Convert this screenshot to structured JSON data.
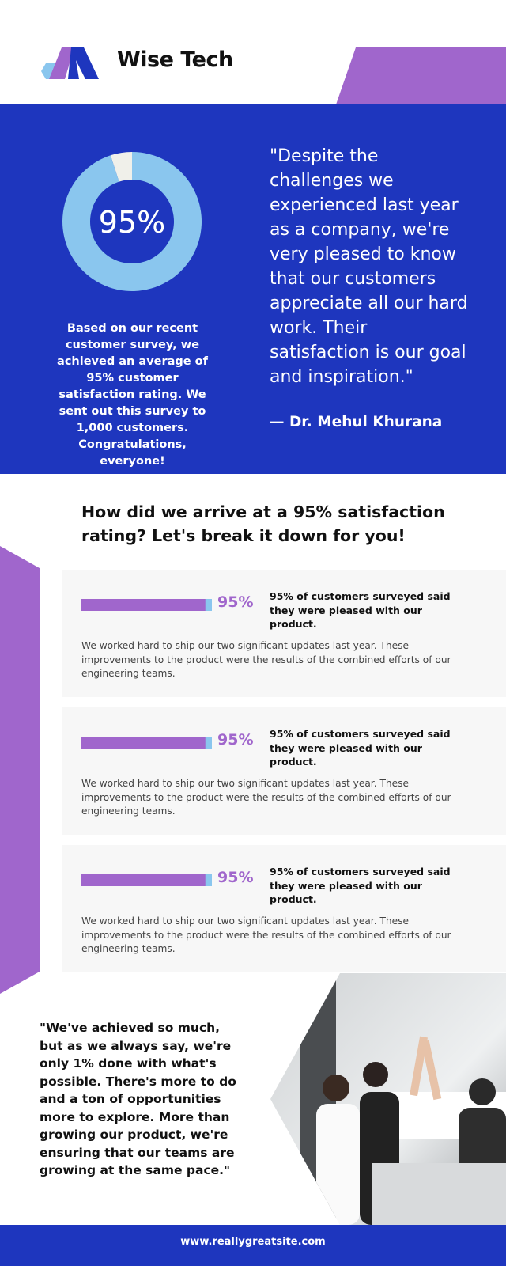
{
  "header": {
    "brand": "Wise Tech"
  },
  "hero": {
    "donut": {
      "value": 95,
      "label": "95%"
    },
    "summary": "Based on our recent customer survey, we achieved an average of 95% customer satisfaction rating. We sent out this survey to 1,000 customers. Congratulations, everyone!",
    "quote": "\"Despite the challenges we experienced last year as a company, we're very pleased to know that our customers appreciate all our hard work. Their satisfaction is our goal and inspiration.\"",
    "author": "— Dr. Mehul Khurana"
  },
  "breakdown": {
    "heading": "How did we arrive at a 95% satisfaction rating? Let's break it down for you!",
    "cards": [
      {
        "percent": {
          "value": 95,
          "label": "95%"
        },
        "headline": "95% of customers surveyed said they were pleased with our product.",
        "body": "We worked hard to ship our two significant updates last year. These improvements to the product were the results of the combined efforts of our engineering teams."
      },
      {
        "percent": {
          "value": 95,
          "label": "95%"
        },
        "headline": "95% of customers surveyed said they were pleased with our product.",
        "body": "We worked hard to ship our two significant updates last year. These improvements to the product were the results of the combined efforts of our engineering teams."
      },
      {
        "percent": {
          "value": 95,
          "label": "95%"
        },
        "headline": "95% of customers surveyed said they were pleased with our product.",
        "body": "We worked hard to ship our two significant updates last year. These improvements to the product were the results of the combined efforts of our engineering teams."
      }
    ]
  },
  "closing": {
    "quote": "\"We've achieved so much, but as we always say, we're only 1% done with what's possible. There's more to do and a ton of opportunities more to explore. More than growing our product, we're ensuring that our teams are growing at the same pace.\""
  },
  "footer": {
    "url": "www.reallygreatsite.com"
  }
}
